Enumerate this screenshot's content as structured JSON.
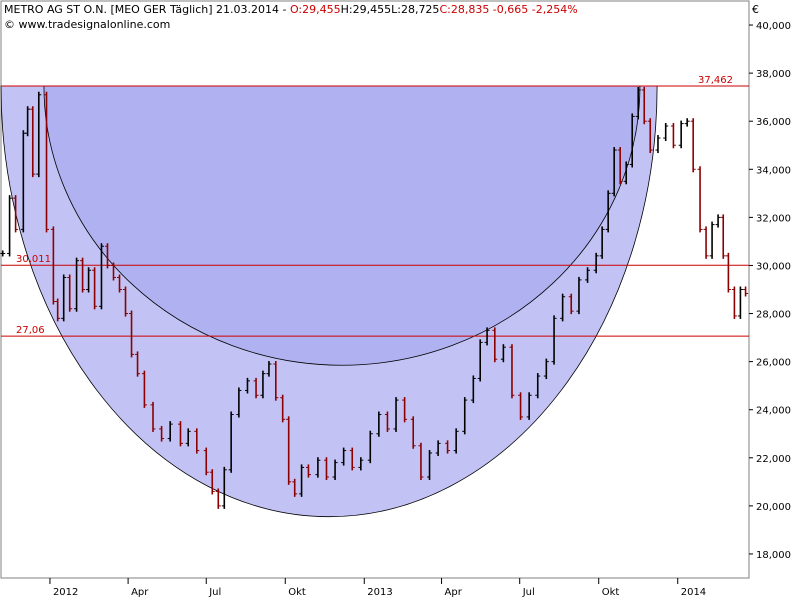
{
  "header": {
    "symbol": "METRO AG ST O.N. [MEO GER  Täglich] 21.03.2014 - ",
    "open": "O:29,455",
    "high": "H:29,455",
    "low": "L:28,725",
    "close_change": "C:28,835 -0,665 -2,254%",
    "source": "© www.tradesignalonline.com",
    "currency": "€",
    "close_color": "#cc0000",
    "open_color": "#cc0000"
  },
  "colors": {
    "up_bar": "#000000",
    "down_bar": "#8b0000",
    "level_line": "#cc0000",
    "shade_fill": "#a8aaf0",
    "shade_stroke": "#000000"
  },
  "chart_data": {
    "type": "line",
    "title": "METRO AG ST O.N. [MEO GER  Täglich] 21.03.2014",
    "xlabel": "",
    "ylabel": "",
    "y_unit": "€",
    "ylim": [
      17000,
      41000
    ],
    "y_ticks": [
      18000,
      20000,
      22000,
      24000,
      26000,
      28000,
      30000,
      32000,
      34000,
      36000,
      38000,
      40000
    ],
    "y_tick_labels": [
      "18,000",
      "20,000",
      "22,000",
      "24,000",
      "26,000",
      "28,000",
      "30,000",
      "32,000",
      "34,000",
      "36,000",
      "38,000",
      "40,000"
    ],
    "x_range": [
      "2011-11-05",
      "2014-03-25"
    ],
    "x_ticks": [
      {
        "date": "2012-01-01",
        "label": "2012"
      },
      {
        "date": "2012-04-01",
        "label": "Apr"
      },
      {
        "date": "2012-07-01",
        "label": "Jul"
      },
      {
        "date": "2012-10-01",
        "label": "Okt"
      },
      {
        "date": "2013-01-01",
        "label": "2013"
      },
      {
        "date": "2013-04-01",
        "label": "Apr"
      },
      {
        "date": "2013-07-01",
        "label": "Jul"
      },
      {
        "date": "2013-10-01",
        "label": "Okt"
      },
      {
        "date": "2014-01-01",
        "label": "2014"
      }
    ],
    "levels": [
      {
        "value": 37462,
        "label": "37,462"
      },
      {
        "value": 30011,
        "label": "30,011"
      },
      {
        "value": 27060,
        "label": "27,06"
      }
    ],
    "series": [
      {
        "points": [
          [
            "2011-11-07",
            30500
          ],
          [
            "2011-11-15",
            32800
          ],
          [
            "2011-11-22",
            31500
          ],
          [
            "2011-12-01",
            35500
          ],
          [
            "2011-12-06",
            36500
          ],
          [
            "2011-12-12",
            33800
          ],
          [
            "2011-12-19",
            37100
          ],
          [
            "2011-12-28",
            31500
          ],
          [
            "2012-01-05",
            28500
          ],
          [
            "2012-01-10",
            27800
          ],
          [
            "2012-01-17",
            29500
          ],
          [
            "2012-01-24",
            28200
          ],
          [
            "2012-02-01",
            30200
          ],
          [
            "2012-02-08",
            29000
          ],
          [
            "2012-02-15",
            29800
          ],
          [
            "2012-02-22",
            28300
          ],
          [
            "2012-03-01",
            30800
          ],
          [
            "2012-03-08",
            30000
          ],
          [
            "2012-03-15",
            29500
          ],
          [
            "2012-03-22",
            29000
          ],
          [
            "2012-03-29",
            28000
          ],
          [
            "2012-04-05",
            26300
          ],
          [
            "2012-04-12",
            25500
          ],
          [
            "2012-04-20",
            24200
          ],
          [
            "2012-04-30",
            23200
          ],
          [
            "2012-05-10",
            22800
          ],
          [
            "2012-05-20",
            23400
          ],
          [
            "2012-06-01",
            22600
          ],
          [
            "2012-06-10",
            23100
          ],
          [
            "2012-06-20",
            22300
          ],
          [
            "2012-07-01",
            21400
          ],
          [
            "2012-07-08",
            20600
          ],
          [
            "2012-07-15",
            20000
          ],
          [
            "2012-07-22",
            21500
          ],
          [
            "2012-07-30",
            23800
          ],
          [
            "2012-08-08",
            24800
          ],
          [
            "2012-08-18",
            25200
          ],
          [
            "2012-08-28",
            24600
          ],
          [
            "2012-09-05",
            25500
          ],
          [
            "2012-09-12",
            25900
          ],
          [
            "2012-09-20",
            24500
          ],
          [
            "2012-09-28",
            23600
          ],
          [
            "2012-10-05",
            21000
          ],
          [
            "2012-10-12",
            20500
          ],
          [
            "2012-10-20",
            21600
          ],
          [
            "2012-10-28",
            21300
          ],
          [
            "2012-11-08",
            21900
          ],
          [
            "2012-11-18",
            21200
          ],
          [
            "2012-11-28",
            21800
          ],
          [
            "2012-12-08",
            22300
          ],
          [
            "2012-12-18",
            21600
          ],
          [
            "2012-12-28",
            21900
          ],
          [
            "2013-01-08",
            23000
          ],
          [
            "2013-01-18",
            23800
          ],
          [
            "2013-01-28",
            23200
          ],
          [
            "2013-02-07",
            24400
          ],
          [
            "2013-02-17",
            23600
          ],
          [
            "2013-02-27",
            22500
          ],
          [
            "2013-03-08",
            21200
          ],
          [
            "2013-03-18",
            22200
          ],
          [
            "2013-03-28",
            22600
          ],
          [
            "2013-04-08",
            22300
          ],
          [
            "2013-04-18",
            23100
          ],
          [
            "2013-04-28",
            24400
          ],
          [
            "2013-05-08",
            25300
          ],
          [
            "2013-05-16",
            26800
          ],
          [
            "2013-05-24",
            27300
          ],
          [
            "2013-06-02",
            26100
          ],
          [
            "2013-06-12",
            26600
          ],
          [
            "2013-06-22",
            24600
          ],
          [
            "2013-07-02",
            23700
          ],
          [
            "2013-07-12",
            24600
          ],
          [
            "2013-07-22",
            25400
          ],
          [
            "2013-08-01",
            26000
          ],
          [
            "2013-08-10",
            27800
          ],
          [
            "2013-08-20",
            28700
          ],
          [
            "2013-08-30",
            28100
          ],
          [
            "2013-09-08",
            29400
          ],
          [
            "2013-09-18",
            29800
          ],
          [
            "2013-09-28",
            30400
          ],
          [
            "2013-10-05",
            31500
          ],
          [
            "2013-10-12",
            33000
          ],
          [
            "2013-10-19",
            34800
          ],
          [
            "2013-10-26",
            33500
          ],
          [
            "2013-11-02",
            34200
          ],
          [
            "2013-11-09",
            36200
          ],
          [
            "2013-11-16",
            37300
          ],
          [
            "2013-11-23",
            36000
          ],
          [
            "2013-11-30",
            34800
          ],
          [
            "2013-12-09",
            35300
          ],
          [
            "2013-12-18",
            35800
          ],
          [
            "2013-12-27",
            35000
          ],
          [
            "2014-01-05",
            35900
          ],
          [
            "2014-01-12",
            36000
          ],
          [
            "2014-01-19",
            34000
          ],
          [
            "2014-01-27",
            31500
          ],
          [
            "2014-02-03",
            30400
          ],
          [
            "2014-02-10",
            31700
          ],
          [
            "2014-02-17",
            32000
          ],
          [
            "2014-02-23",
            30400
          ],
          [
            "2014-03-01",
            29000
          ],
          [
            "2014-03-08",
            27900
          ],
          [
            "2014-03-15",
            29000
          ],
          [
            "2014-03-21",
            28835
          ]
        ]
      }
    ],
    "shading": [
      {
        "shape": "semicircle",
        "from": "2011-11-05",
        "to": "2013-12-08",
        "top": 37462,
        "bottom": 19550,
        "opacity": 0.7
      },
      {
        "shape": "semicircle",
        "from": "2011-12-25",
        "to": "2013-11-18",
        "top": 37462,
        "bottom": 25850,
        "opacity": 0.7
      }
    ],
    "grid": false,
    "legend": "none"
  }
}
